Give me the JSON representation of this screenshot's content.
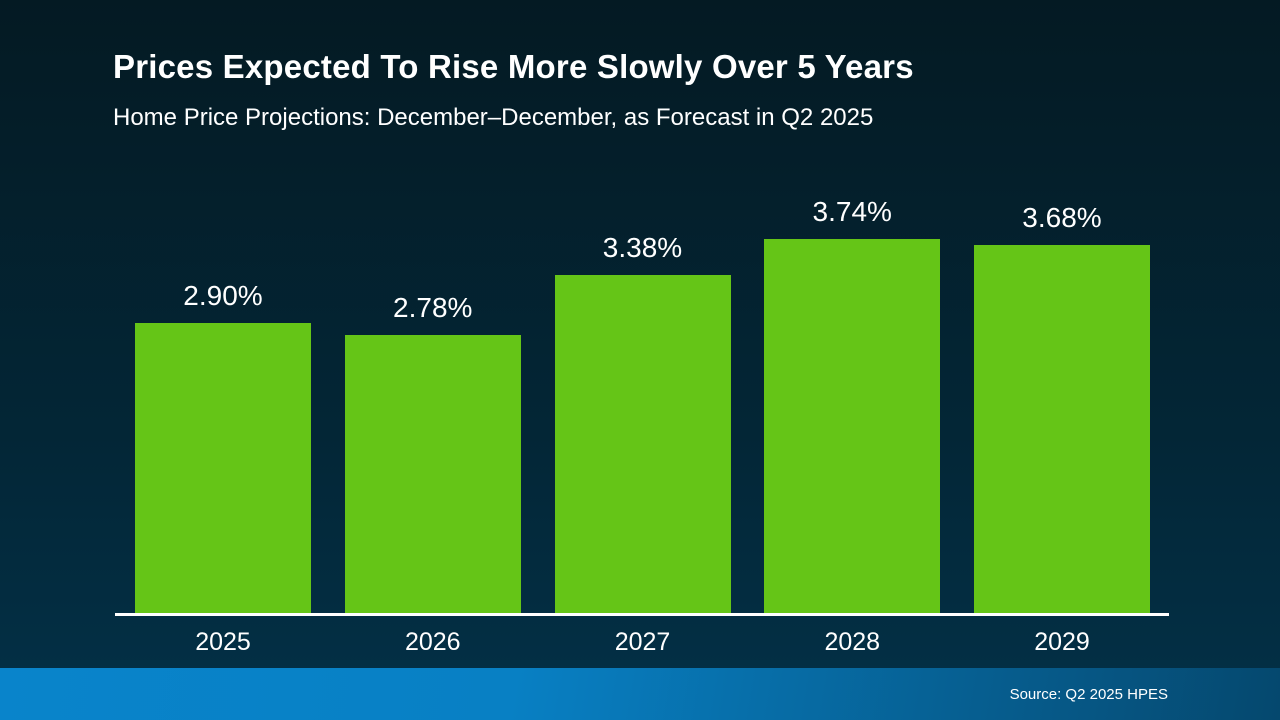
{
  "slide": {
    "title": "Prices Expected To Rise More Slowly Over 5 Years",
    "subtitle": "Home Price Projections: December–December, as Forecast in Q2 2025",
    "source": "Source: Q2 2025 HPES"
  },
  "colors": {
    "background_top": "#041a23",
    "background_bottom": "#033148",
    "bar": "#65c517",
    "axis": "#ffffff",
    "text": "#ffffff",
    "footer_left": "#0984cb",
    "footer_right": "#05486e"
  },
  "chart_data": {
    "type": "bar",
    "title": "Prices Expected To Rise More Slowly Over 5 Years",
    "subtitle": "Home Price Projections: December–December, as Forecast in Q2 2025",
    "categories": [
      "2025",
      "2026",
      "2027",
      "2028",
      "2029"
    ],
    "values": [
      2.9,
      2.78,
      3.38,
      3.74,
      3.68
    ],
    "labels": [
      "2.90%",
      "2.78%",
      "3.38%",
      "3.74%",
      "3.68%"
    ],
    "xlabel": "",
    "ylabel": "",
    "ylim": [
      0,
      4.2
    ],
    "grid": false,
    "legend": false,
    "bar_color": "#65c517",
    "source_annotation": "Source: Q2 2025 HPES"
  }
}
